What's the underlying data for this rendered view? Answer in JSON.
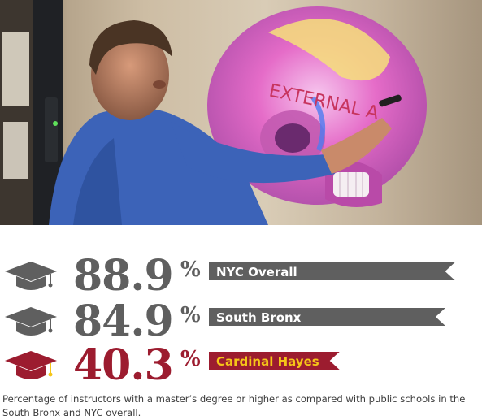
{
  "photo": {
    "description_icon": "teacher-at-whiteboard-photo",
    "whiteboard_text": "EXTERNAL A"
  },
  "chart_data": {
    "type": "bar",
    "unit": "%",
    "categories": [
      "NYC Overall",
      "South Bronx",
      "Cardinal Hayes"
    ],
    "values": [
      88.9,
      84.9,
      40.3
    ],
    "value_labels": [
      "88.9",
      "84.9",
      "40.3"
    ],
    "icon": "graduation-cap-icon",
    "colors": {
      "gray": "#5f5f5f",
      "gray_light": "#9a9a9a",
      "highlight": "#9c1c2f",
      "highlight_text": "#f5c518"
    },
    "highlight_index": 2
  },
  "caption": "Percentage of instructors with a master’s degree or higher as compared with public schools in the South Bronx and NYC overall."
}
